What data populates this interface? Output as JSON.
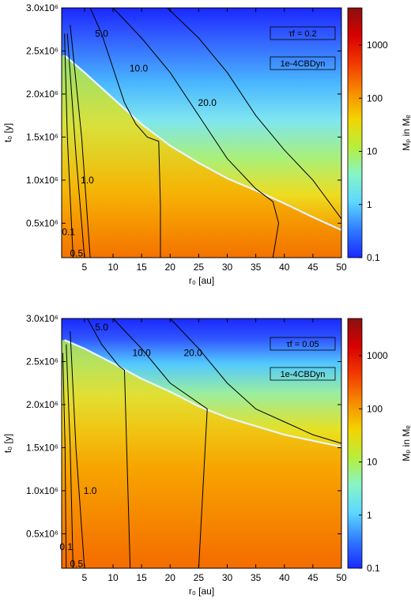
{
  "colormap_colors": [
    "#1a28ff",
    "#2f7bff",
    "#5dd7ff",
    "#86f5c8",
    "#b8ee3a",
    "#f3d400",
    "#f78a00",
    "#f23a00",
    "#d80000",
    "#8b1010"
  ],
  "chart_data": [
    {
      "type": "heatmap",
      "xlabel": "r₀ [au]",
      "ylabel": "t₀ [y]",
      "x_ticks": [
        "5",
        "10",
        "15",
        "20",
        "25",
        "30",
        "35",
        "40",
        "45",
        "50"
      ],
      "y_ticks": [
        "0.5x10⁶",
        "1.0x10⁶",
        "1.5x10⁶",
        "2.0x10⁶",
        "2.5x10⁶",
        "3.0x10⁶"
      ],
      "xlim": [
        1,
        50
      ],
      "ylim": [
        100000,
        3000000
      ],
      "colorbar": {
        "label": "Mₚ in Mₑ",
        "scale": "log",
        "range": [
          0.1,
          5000
        ],
        "ticks": [
          "0.1",
          "1",
          "10",
          "100",
          "1000"
        ]
      },
      "legend": [
        "τf = 0.2",
        "1e-4CBDyn"
      ],
      "legend_placement": "top-right",
      "contours": [
        {
          "label": "0.1",
          "points": [
            [
              1.5,
              2700000
            ],
            [
              2.0,
              1500000
            ],
            [
              3.0,
              100000
            ]
          ]
        },
        {
          "label": "0.5",
          "points": [
            [
              2.0,
              2700000
            ],
            [
              3.5,
              1300000
            ],
            [
              5.0,
              100000
            ]
          ]
        },
        {
          "label": "1.0",
          "points": [
            [
              2.5,
              2800000
            ],
            [
              4.5,
              1500000
            ],
            [
              6.0,
              100000
            ]
          ]
        },
        {
          "label": "5.0",
          "points": [
            [
              6.0,
              3000000
            ],
            [
              8.0,
              2700000
            ],
            [
              10.0,
              2300000
            ],
            [
              12.0,
              1900000
            ],
            [
              14.0,
              1650000
            ],
            [
              16.0,
              1500000
            ],
            [
              18.0,
              1450000
            ],
            [
              18.3,
              700000
            ],
            [
              18.3,
              100000
            ]
          ]
        },
        {
          "label": "10.0",
          "points": [
            [
              10.0,
              3000000
            ],
            [
              15.0,
              2650000
            ],
            [
              20.0,
              2250000
            ],
            [
              25.0,
              1750000
            ],
            [
              30.0,
              1250000
            ],
            [
              35.0,
              900000
            ],
            [
              38.0,
              750000
            ],
            [
              39.0,
              500000
            ],
            [
              38.0,
              100000
            ]
          ]
        },
        {
          "label": "20.0",
          "points": [
            [
              19.5,
              3000000
            ],
            [
              25.0,
              2650000
            ],
            [
              30.0,
              2250000
            ],
            [
              35.0,
              1750000
            ],
            [
              40.0,
              1350000
            ],
            [
              45.0,
              1000000
            ],
            [
              50.0,
              550000
            ]
          ]
        }
      ],
      "boundary": [
        [
          1.5,
          2450000
        ],
        [
          5.0,
          2250000
        ],
        [
          10.0,
          1950000
        ],
        [
          15.0,
          1650000
        ],
        [
          20.0,
          1400000
        ],
        [
          25.0,
          1200000
        ],
        [
          30.0,
          1020000
        ],
        [
          35.0,
          880000
        ],
        [
          40.0,
          730000
        ],
        [
          45.0,
          570000
        ],
        [
          50.0,
          420000
        ]
      ]
    },
    {
      "type": "heatmap",
      "xlabel": "r₀ [au]",
      "ylabel": "t₀ [y]",
      "x_ticks": [
        "5",
        "10",
        "15",
        "20",
        "25",
        "30",
        "35",
        "40",
        "45",
        "50"
      ],
      "y_ticks": [
        "0.5x10⁶",
        "1.0x10⁶",
        "1.5x10⁶",
        "2.0x10⁶",
        "2.5x10⁶",
        "3.0x10⁶"
      ],
      "xlim": [
        1,
        50
      ],
      "ylim": [
        100000,
        3000000
      ],
      "colorbar": {
        "label": "Mₚ in Mₑ",
        "scale": "log",
        "range": [
          0.1,
          5000
        ],
        "ticks": [
          "0.1",
          "1",
          "10",
          "100",
          "1000"
        ]
      },
      "legend": [
        "τf = 0.05",
        "1e-4CBDyn"
      ],
      "legend_placement": "top-right",
      "contours": [
        {
          "label": "0.1",
          "points": [
            [
              1.2,
              2600000
            ],
            [
              1.6,
              1500000
            ],
            [
              1.8,
              100000
            ]
          ]
        },
        {
          "label": "0.5",
          "points": [
            [
              1.8,
              2700000
            ],
            [
              2.5,
              1500000
            ],
            [
              3.0,
              100000
            ]
          ]
        },
        {
          "label": "1.0",
          "points": [
            [
              2.5,
              2850000
            ],
            [
              3.5,
              1500000
            ],
            [
              5.0,
              100000
            ]
          ]
        },
        {
          "label": "5.0",
          "points": [
            [
              5.5,
              3000000
            ],
            [
              8.0,
              2700000
            ],
            [
              11.0,
              2450000
            ],
            [
              12.0,
              2400000
            ],
            [
              13.0,
              100000
            ]
          ]
        },
        {
          "label": "10.0",
          "points": [
            [
              10.0,
              3000000
            ],
            [
              15.0,
              2650000
            ],
            [
              20.0,
              2250000
            ],
            [
              26.5,
              1950000
            ],
            [
              25.0,
              100000
            ]
          ]
        },
        {
          "label": "20.0",
          "points": [
            [
              20.0,
              3000000
            ],
            [
              25.0,
              2650000
            ],
            [
              30.0,
              2250000
            ],
            [
              35.0,
              1950000
            ],
            [
              40.0,
              1800000
            ],
            [
              45.0,
              1650000
            ],
            [
              50.0,
              1550000
            ]
          ]
        }
      ],
      "boundary": [
        [
          1.5,
          2750000
        ],
        [
          5.0,
          2650000
        ],
        [
          10.0,
          2480000
        ],
        [
          15.0,
          2300000
        ],
        [
          20.0,
          2150000
        ],
        [
          25.0,
          1980000
        ],
        [
          30.0,
          1850000
        ],
        [
          35.0,
          1750000
        ],
        [
          40.0,
          1650000
        ],
        [
          45.0,
          1580000
        ],
        [
          50.0,
          1510000
        ]
      ]
    }
  ]
}
